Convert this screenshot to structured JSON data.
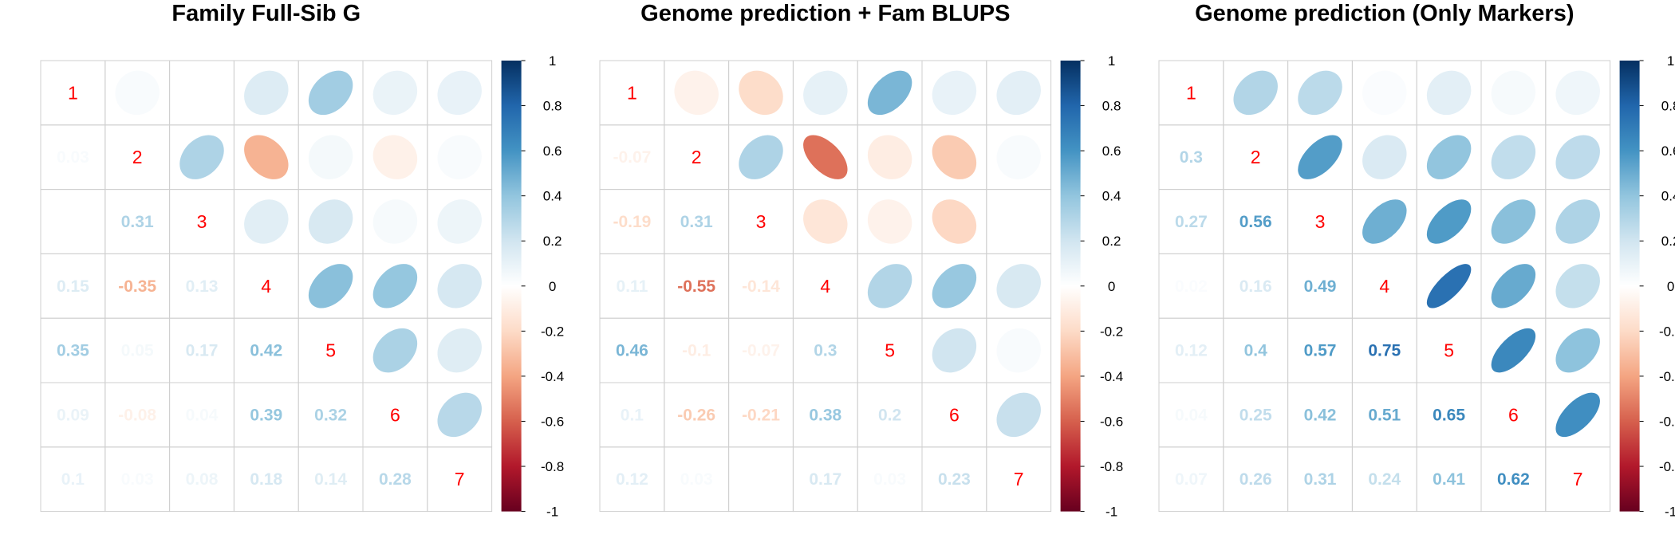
{
  "chart_data": [
    {
      "type": "heatmap",
      "title": "Family Full-Sib G",
      "labels": [
        "1",
        "2",
        "3",
        "4",
        "5",
        "6",
        "7"
      ],
      "lower_triangle": [
        [
          0.03
        ],
        [
          0.0,
          0.31
        ],
        [
          0.15,
          -0.35,
          0.13
        ],
        [
          0.35,
          0.05,
          0.17,
          0.42
        ],
        [
          0.09,
          -0.08,
          0.04,
          0.39,
          0.32
        ],
        [
          0.1,
          0.03,
          0.08,
          0.18,
          0.14,
          0.28
        ]
      ],
      "lower_labels": [
        [
          "0.03"
        ],
        [
          "",
          "0.31"
        ],
        [
          "0.15",
          "-0.35",
          "0.13"
        ],
        [
          "0.35",
          "0.05",
          "0.17",
          "0.42"
        ],
        [
          "0.09",
          "-0.08",
          "0.04",
          "0.39",
          "0.32"
        ],
        [
          "0.1",
          "0.03",
          "0.08",
          "0.18",
          "0.14",
          "0.28"
        ]
      ]
    },
    {
      "type": "heatmap",
      "title": "Genome prediction + Fam BLUPS",
      "labels": [
        "1",
        "2",
        "3",
        "4",
        "5",
        "6",
        "7"
      ],
      "lower_triangle": [
        [
          -0.07
        ],
        [
          -0.19,
          0.31
        ],
        [
          0.11,
          -0.55,
          -0.14
        ],
        [
          0.46,
          -0.1,
          -0.07,
          0.3
        ],
        [
          0.1,
          -0.26,
          -0.21,
          0.38,
          0.2
        ],
        [
          0.12,
          0.03,
          0.0,
          0.17,
          0.03,
          0.23
        ]
      ],
      "lower_labels": [
        [
          "-0.07"
        ],
        [
          "-0.19",
          "0.31"
        ],
        [
          "0.11",
          "-0.55",
          "-0.14"
        ],
        [
          "0.46",
          "-0.1",
          "-0.07",
          "0.3"
        ],
        [
          "0.1",
          "-0.26",
          "-0.21",
          "0.38",
          "0.2"
        ],
        [
          "0.12",
          "0.03",
          "",
          "0.17",
          "0.03",
          "0.23"
        ]
      ]
    },
    {
      "type": "heatmap",
      "title": "Genome prediction (Only Markers)",
      "labels": [
        "1",
        "2",
        "3",
        "4",
        "5",
        "6",
        "7"
      ],
      "lower_triangle": [
        [
          0.3
        ],
        [
          0.27,
          0.56
        ],
        [
          0.02,
          0.16,
          0.49
        ],
        [
          0.12,
          0.4,
          0.57,
          0.75
        ],
        [
          0.04,
          0.25,
          0.42,
          0.51,
          0.65
        ],
        [
          0.07,
          0.26,
          0.31,
          0.24,
          0.41,
          0.62
        ]
      ],
      "lower_labels": [
        [
          "0.3"
        ],
        [
          "0.27",
          "0.56"
        ],
        [
          "0.02",
          "0.16",
          "0.49"
        ],
        [
          "0.12",
          "0.4",
          "0.57",
          "0.75"
        ],
        [
          "0.04",
          "0.25",
          "0.42",
          "0.51",
          "0.65"
        ],
        [
          "0.07",
          "0.26",
          "0.31",
          "0.24",
          "0.41",
          "0.62"
        ]
      ]
    }
  ],
  "colorbar": {
    "range": [
      -1,
      1
    ],
    "ticks": [
      "1",
      "0.8",
      "0.6",
      "0.4",
      "0.2",
      "0",
      "-0.2",
      "-0.4",
      "-0.6",
      "-0.8",
      "-1"
    ],
    "palette": [
      "#67001F",
      "#B2182B",
      "#D6604D",
      "#F4A582",
      "#FDDBC7",
      "#FFFFFF",
      "#D1E5F0",
      "#92C5DE",
      "#4393C3",
      "#2166AC",
      "#053061"
    ]
  },
  "colors": {
    "diagonal_label": "#ff0000",
    "grid": "#cfcfcf"
  }
}
